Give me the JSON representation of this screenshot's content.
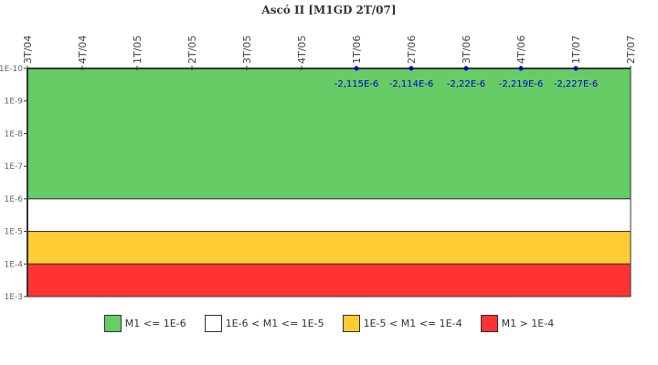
{
  "title": "Ascó II [M1GD 2T/07]",
  "chart_data": {
    "type": "scatter",
    "title": "Ascó II [M1GD 2T/07]",
    "xlabel": "",
    "ylabel": "",
    "x_ticks": [
      "3T/04",
      "4T/04",
      "1T/05",
      "2T/05",
      "3T/05",
      "4T/05",
      "1T/06",
      "2T/06",
      "3T/06",
      "4T/06",
      "1T/07",
      "2T/07"
    ],
    "y_ticks": [
      "1E-10",
      "1E-9",
      "1E-8",
      "1E-7",
      "1E-6",
      "1E-5",
      "1E-4",
      "1E-3"
    ],
    "y_scale": "log-inverted",
    "bands": [
      {
        "label": "M1 <= 1E-6",
        "from": "1E-10",
        "to": "1E-6",
        "color": "#66cc66"
      },
      {
        "label": "1E-6 < M1 <= 1E-5",
        "from": "1E-6",
        "to": "1E-5",
        "color": "#ffffff"
      },
      {
        "label": "1E-5 < M1 <= 1E-4",
        "from": "1E-5",
        "to": "1E-4",
        "color": "#ffcc33"
      },
      {
        "label": "M1 > 1E-4",
        "from": "1E-4",
        "to": "1E-3",
        "color": "#ff3333"
      }
    ],
    "series": [
      {
        "name": "M1GD",
        "color": "#0000cc",
        "points": [
          {
            "x": "1T/06",
            "value": -2.115e-06,
            "label": "-2,115E-6"
          },
          {
            "x": "2T/06",
            "value": -2.114e-06,
            "label": "-2,114E-6"
          },
          {
            "x": "3T/06",
            "value": -2.22e-06,
            "label": "-2,22E-6"
          },
          {
            "x": "4T/06",
            "value": -2.219e-06,
            "label": "-2,219E-6"
          },
          {
            "x": "1T/07",
            "value": -2.227e-06,
            "label": "-2,227E-6"
          }
        ]
      }
    ],
    "legend_position": "bottom",
    "grid": false
  },
  "legend": [
    {
      "label": "M1 <= 1E-6",
      "color": "#66cc66"
    },
    {
      "label": "1E-6 < M1 <= 1E-5",
      "color": "#ffffff"
    },
    {
      "label": "1E-5 < M1 <= 1E-4",
      "color": "#ffcc33"
    },
    {
      "label": "M1 > 1E-4",
      "color": "#ff3333"
    }
  ]
}
